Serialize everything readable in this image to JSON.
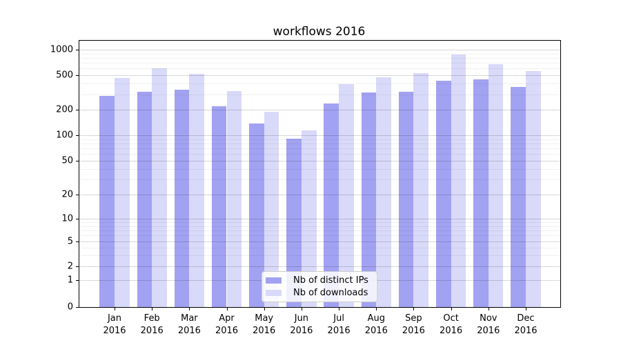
{
  "chart_data": {
    "type": "bar",
    "title": "workflows 2016",
    "categories": [
      "Jan 2016",
      "Feb 2016",
      "Mar 2016",
      "Apr 2016",
      "May 2016",
      "Jun 2016",
      "Jul 2016",
      "Aug 2016",
      "Sep 2016",
      "Oct 2016",
      "Nov 2016",
      "Dec 2016"
    ],
    "series": [
      {
        "name": "Nb of distinct IPs",
        "color": "#a2a2f2",
        "values": [
          290,
          320,
          340,
          220,
          138,
          91,
          235,
          315,
          325,
          430,
          445,
          365
        ]
      },
      {
        "name": "Nb of downloads",
        "color": "#d9d9f9",
        "values": [
          465,
          600,
          520,
          330,
          190,
          114,
          395,
          475,
          530,
          875,
          680,
          560
        ]
      }
    ],
    "yscale": "log-like (ticks 0,1,2,5,10,20,50,100,200,500,1000; linear segment near 0)",
    "yticks": [
      0,
      1,
      2,
      5,
      10,
      20,
      50,
      100,
      200,
      500,
      1000
    ],
    "minor_gridline_values": [
      3,
      4,
      6,
      7,
      8,
      9,
      30,
      40,
      60,
      70,
      80,
      90,
      300,
      400,
      600,
      700,
      800,
      900
    ],
    "ylim": [
      0,
      1250
    ],
    "xlabel": "",
    "ylabel": "",
    "grid": true,
    "legend_position": "lower center",
    "legend_entries": [
      "Nb of distinct IPs",
      "Nb of downloads"
    ]
  }
}
